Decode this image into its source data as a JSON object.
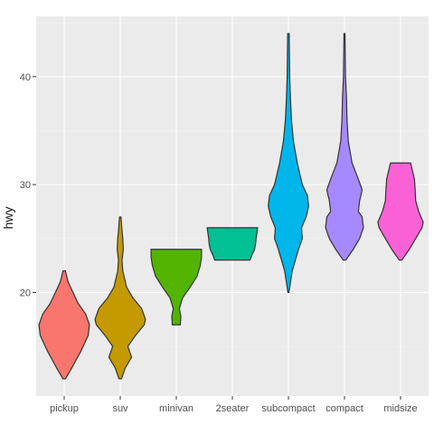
{
  "chart_data": {
    "type": "violin",
    "ylabel": "hwy",
    "xlabel": "",
    "ylim": [
      10.4,
      45.6
    ],
    "yticks": [
      20,
      30,
      40
    ],
    "grid": true,
    "legend": "none",
    "categories": [
      "pickup",
      "suv",
      "minivan",
      "2seater",
      "subcompact",
      "compact",
      "midsize"
    ],
    "series": [
      {
        "category": "pickup",
        "color": "#F8766D",
        "min": 12,
        "max": 22,
        "profile": [
          [
            12,
            0.05
          ],
          [
            13,
            0.3
          ],
          [
            14.5,
            0.65
          ],
          [
            16,
            0.95
          ],
          [
            17,
            1.0
          ],
          [
            18,
            0.85
          ],
          [
            19,
            0.55
          ],
          [
            20,
            0.35
          ],
          [
            21,
            0.15
          ],
          [
            22,
            0.05
          ]
        ]
      },
      {
        "category": "suv",
        "color": "#C49A00",
        "min": 12,
        "max": 27,
        "profile": [
          [
            12,
            0.05
          ],
          [
            13,
            0.2
          ],
          [
            14,
            0.45
          ],
          [
            15,
            0.3
          ],
          [
            16,
            0.6
          ],
          [
            17,
            0.95
          ],
          [
            17.5,
            1.0
          ],
          [
            18.5,
            0.85
          ],
          [
            19.5,
            0.5
          ],
          [
            20.5,
            0.25
          ],
          [
            22,
            0.1
          ],
          [
            23,
            0.07
          ],
          [
            24,
            0.12
          ],
          [
            25,
            0.1
          ],
          [
            26,
            0.06
          ],
          [
            27,
            0.03
          ]
        ]
      },
      {
        "category": "minivan",
        "color": "#53B400",
        "min": 17,
        "max": 24,
        "profile": [
          [
            17,
            0.16
          ],
          [
            17.8,
            0.18
          ],
          [
            18.5,
            0.12
          ],
          [
            19.5,
            0.25
          ],
          [
            20.5,
            0.55
          ],
          [
            21.5,
            0.82
          ],
          [
            22.5,
            0.95
          ],
          [
            23.3,
            1.0
          ],
          [
            24,
            1.0
          ]
        ]
      },
      {
        "category": "2seater",
        "color": "#00C094",
        "min": 23,
        "max": 26,
        "profile": [
          [
            23,
            0.7
          ],
          [
            23.5,
            0.78
          ],
          [
            24,
            0.88
          ],
          [
            24.5,
            0.92
          ],
          [
            25,
            0.94
          ],
          [
            25.5,
            0.97
          ],
          [
            26,
            1.0
          ]
        ]
      },
      {
        "category": "subcompact",
        "color": "#00B6EB",
        "min": 20,
        "max": 44,
        "profile": [
          [
            20,
            0.02
          ],
          [
            22,
            0.15
          ],
          [
            24,
            0.4
          ],
          [
            25,
            0.55
          ],
          [
            26,
            0.52
          ],
          [
            27,
            0.7
          ],
          [
            28,
            0.8
          ],
          [
            29,
            0.75
          ],
          [
            30,
            0.55
          ],
          [
            32,
            0.35
          ],
          [
            34,
            0.2
          ],
          [
            36,
            0.12
          ],
          [
            38,
            0.08
          ],
          [
            40,
            0.05
          ],
          [
            42,
            0.04
          ],
          [
            44,
            0.03
          ]
        ]
      },
      {
        "category": "compact",
        "color": "#A58AFF",
        "min": 23,
        "max": 44,
        "profile": [
          [
            23,
            0.05
          ],
          [
            24,
            0.35
          ],
          [
            25,
            0.6
          ],
          [
            26,
            0.75
          ],
          [
            27,
            0.7
          ],
          [
            27.5,
            0.55
          ],
          [
            28.5,
            0.6
          ],
          [
            29.5,
            0.7
          ],
          [
            30.5,
            0.55
          ],
          [
            32,
            0.3
          ],
          [
            34,
            0.15
          ],
          [
            36,
            0.1
          ],
          [
            38,
            0.08
          ],
          [
            40,
            0.04
          ],
          [
            42,
            0.03
          ],
          [
            44,
            0.02
          ]
        ]
      },
      {
        "category": "midsize",
        "color": "#FB61D7",
        "min": 23,
        "max": 32,
        "profile": [
          [
            23,
            0.05
          ],
          [
            24,
            0.35
          ],
          [
            25,
            0.6
          ],
          [
            26,
            0.85
          ],
          [
            26.5,
            0.9
          ],
          [
            27.5,
            0.72
          ],
          [
            28.5,
            0.6
          ],
          [
            29.5,
            0.58
          ],
          [
            30.5,
            0.55
          ],
          [
            31.5,
            0.45
          ],
          [
            32,
            0.4
          ]
        ]
      }
    ]
  }
}
